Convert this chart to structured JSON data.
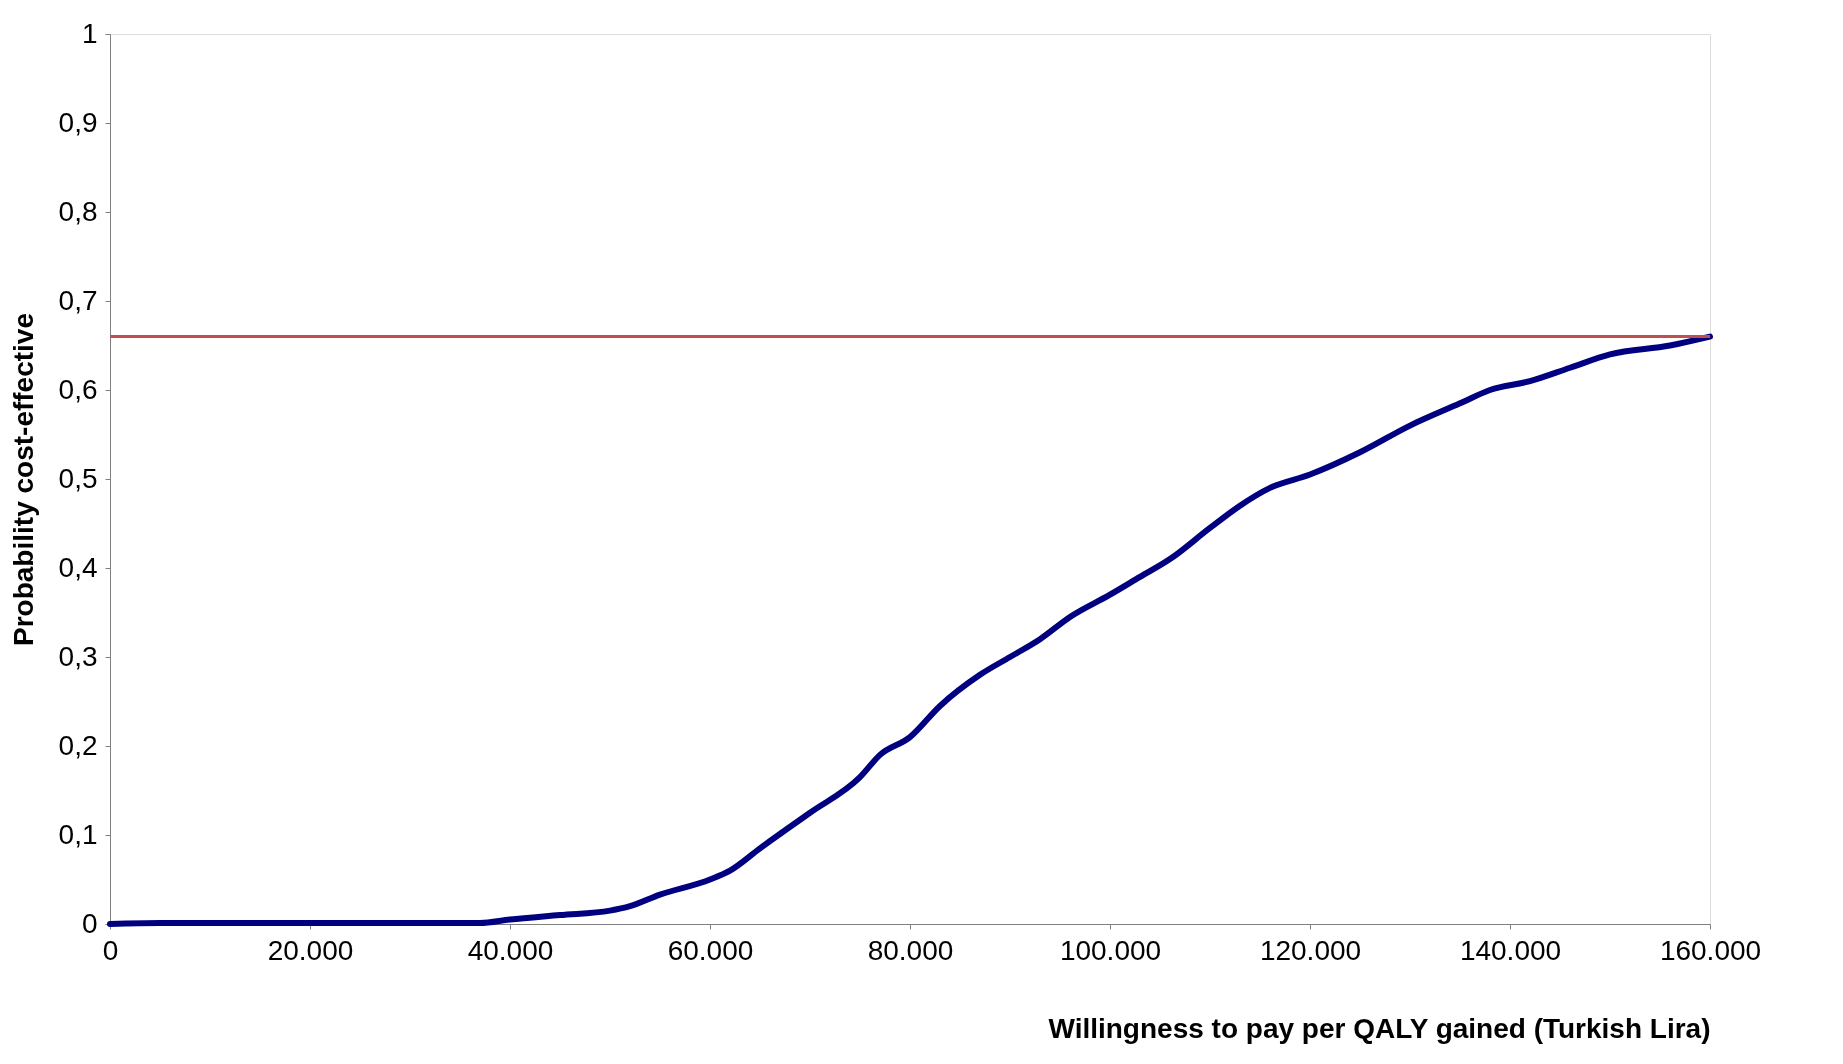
{
  "chart_data": {
    "type": "line",
    "xlabel": "Willingness to pay per QALY gained (Turkish Lira)",
    "ylabel": "Probability cost-effective",
    "x": [
      0,
      5000,
      10000,
      20000,
      30000,
      37000,
      40000,
      45000,
      50000,
      52000,
      55000,
      60000,
      62000,
      65000,
      70000,
      75000,
      77000,
      80000,
      83000,
      87000,
      90000,
      93000,
      96000,
      100000,
      103000,
      106000,
      110000,
      113000,
      116000,
      120000,
      125000,
      130000,
      135000,
      138000,
      142000,
      146000,
      150000,
      156000,
      160000
    ],
    "series": [
      {
        "color": "#000080",
        "values": [
          0,
          0.001,
          0.001,
          0.001,
          0.001,
          0.001,
          0.005,
          0.01,
          0.015,
          0.02,
          0.033,
          0.05,
          0.06,
          0.085,
          0.125,
          0.165,
          0.19,
          0.21,
          0.245,
          0.28,
          0.3,
          0.32,
          0.345,
          0.37,
          0.39,
          0.41,
          0.445,
          0.47,
          0.49,
          0.505,
          0.53,
          0.56,
          0.585,
          0.6,
          0.61,
          0.625,
          0.64,
          0.65,
          0.66
        ]
      }
    ],
    "xlim": [
      0,
      160000
    ],
    "ylim": [
      0,
      1
    ],
    "xticks": [
      0,
      {
        "value": 20000,
        "label": "20.000"
      },
      {
        "value": 40000,
        "label": "40.000"
      },
      {
        "value": 60000,
        "label": "60.000"
      },
      {
        "value": 80000,
        "label": "80.000"
      },
      {
        "value": 100000,
        "label": "100.000"
      },
      {
        "value": 120000,
        "label": "120.000"
      },
      {
        "value": 140000,
        "label": "140.000"
      },
      {
        "value": 160000,
        "label": "160.000"
      }
    ],
    "yticks": [
      0,
      {
        "value": 0.1,
        "label": "0,1"
      },
      {
        "value": 0.2,
        "label": "0,2"
      },
      {
        "value": 0.3,
        "label": "0,3"
      },
      {
        "value": 0.4,
        "label": "0,4"
      },
      {
        "value": 0.5,
        "label": "0,5"
      },
      {
        "value": 0.6,
        "label": "0,6"
      },
      {
        "value": 0.7,
        "label": "0,7"
      },
      {
        "value": 0.8,
        "label": "0,8"
      },
      {
        "value": 0.9,
        "label": "0,9"
      },
      1
    ],
    "ref_lines": [
      {
        "axis": "y",
        "value": 0.66,
        "color": "#c0504d"
      }
    ],
    "grid": false,
    "marker": "none",
    "line_style": "solid"
  }
}
